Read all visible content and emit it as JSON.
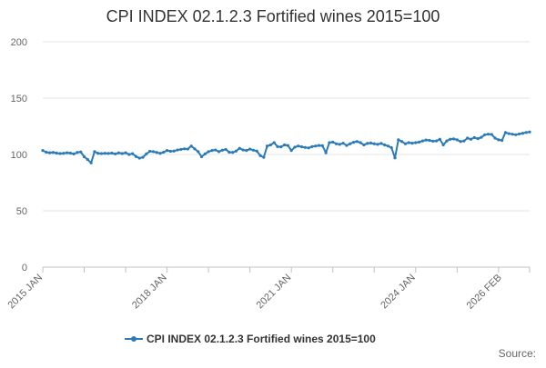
{
  "chart_data": {
    "type": "line",
    "title": "CPI INDEX 02.1.2.3 Fortified wines 2015=100",
    "xlabel": "",
    "ylabel": "",
    "ylim": [
      0,
      200
    ],
    "yticks": [
      0,
      50,
      100,
      150,
      200
    ],
    "xtick_labels": [
      "2015 JAN",
      "2018 JAN",
      "2021 JAN",
      "2024 JAN",
      "2026 FEB"
    ],
    "xtick_positions": [
      0,
      36,
      72,
      108,
      133
    ],
    "legend": "CPI INDEX 02.1.2.3 Fortified wines 2015=100",
    "legend_position": "bottom",
    "source_label": "Source:",
    "series_color": "#2b7bb9",
    "grid": true,
    "series": [
      {
        "name": "CPI INDEX 02.1.2.3 Fortified wines 2015=100",
        "start": "2015 JAN",
        "values": [
          103.5,
          102.0,
          101.5,
          101.8,
          101.2,
          100.8,
          101.0,
          101.5,
          101.2,
          100.5,
          101.8,
          102.2,
          98.0,
          95.5,
          92.5,
          102.5,
          101.0,
          100.8,
          101.0,
          100.9,
          101.2,
          100.5,
          101.4,
          100.8,
          101.5,
          100.0,
          100.7,
          98.2,
          96.8,
          97.5,
          100.5,
          102.8,
          102.5,
          101.8,
          101.0,
          102.0,
          103.5,
          102.8,
          103.0,
          104.0,
          104.5,
          105.0,
          104.8,
          107.5,
          105.0,
          102.5,
          98.0,
          100.5,
          102.5,
          103.5,
          104.0,
          102.5,
          103.8,
          104.5,
          102.0,
          101.8,
          103.0,
          105.5,
          104.0,
          103.5,
          104.8,
          103.8,
          103.0,
          99.0,
          97.5,
          107.5,
          108.5,
          110.5,
          107.0,
          106.8,
          108.5,
          108.0,
          103.5,
          106.5,
          107.5,
          106.8,
          106.2,
          105.8,
          107.0,
          107.5,
          108.0,
          107.8,
          101.5,
          110.5,
          111.0,
          109.5,
          109.0,
          110.0,
          108.0,
          109.5,
          110.8,
          111.5,
          110.5,
          108.5,
          109.8,
          110.2,
          109.5,
          109.0,
          109.8,
          108.5,
          107.5,
          106.0,
          97.0,
          113.0,
          111.5,
          109.5,
          110.5,
          110.0,
          110.5,
          111.0,
          112.0,
          112.8,
          112.5,
          111.8,
          112.0,
          113.5,
          108.5,
          112.0,
          113.5,
          113.8,
          113.0,
          111.5,
          112.0,
          114.5,
          113.5,
          115.0,
          114.0,
          115.2,
          117.5,
          118.0,
          117.8,
          114.5,
          113.0,
          112.5,
          119.5,
          118.5,
          118.0,
          117.5,
          118.2,
          118.8,
          119.5,
          120.0
        ]
      }
    ]
  }
}
